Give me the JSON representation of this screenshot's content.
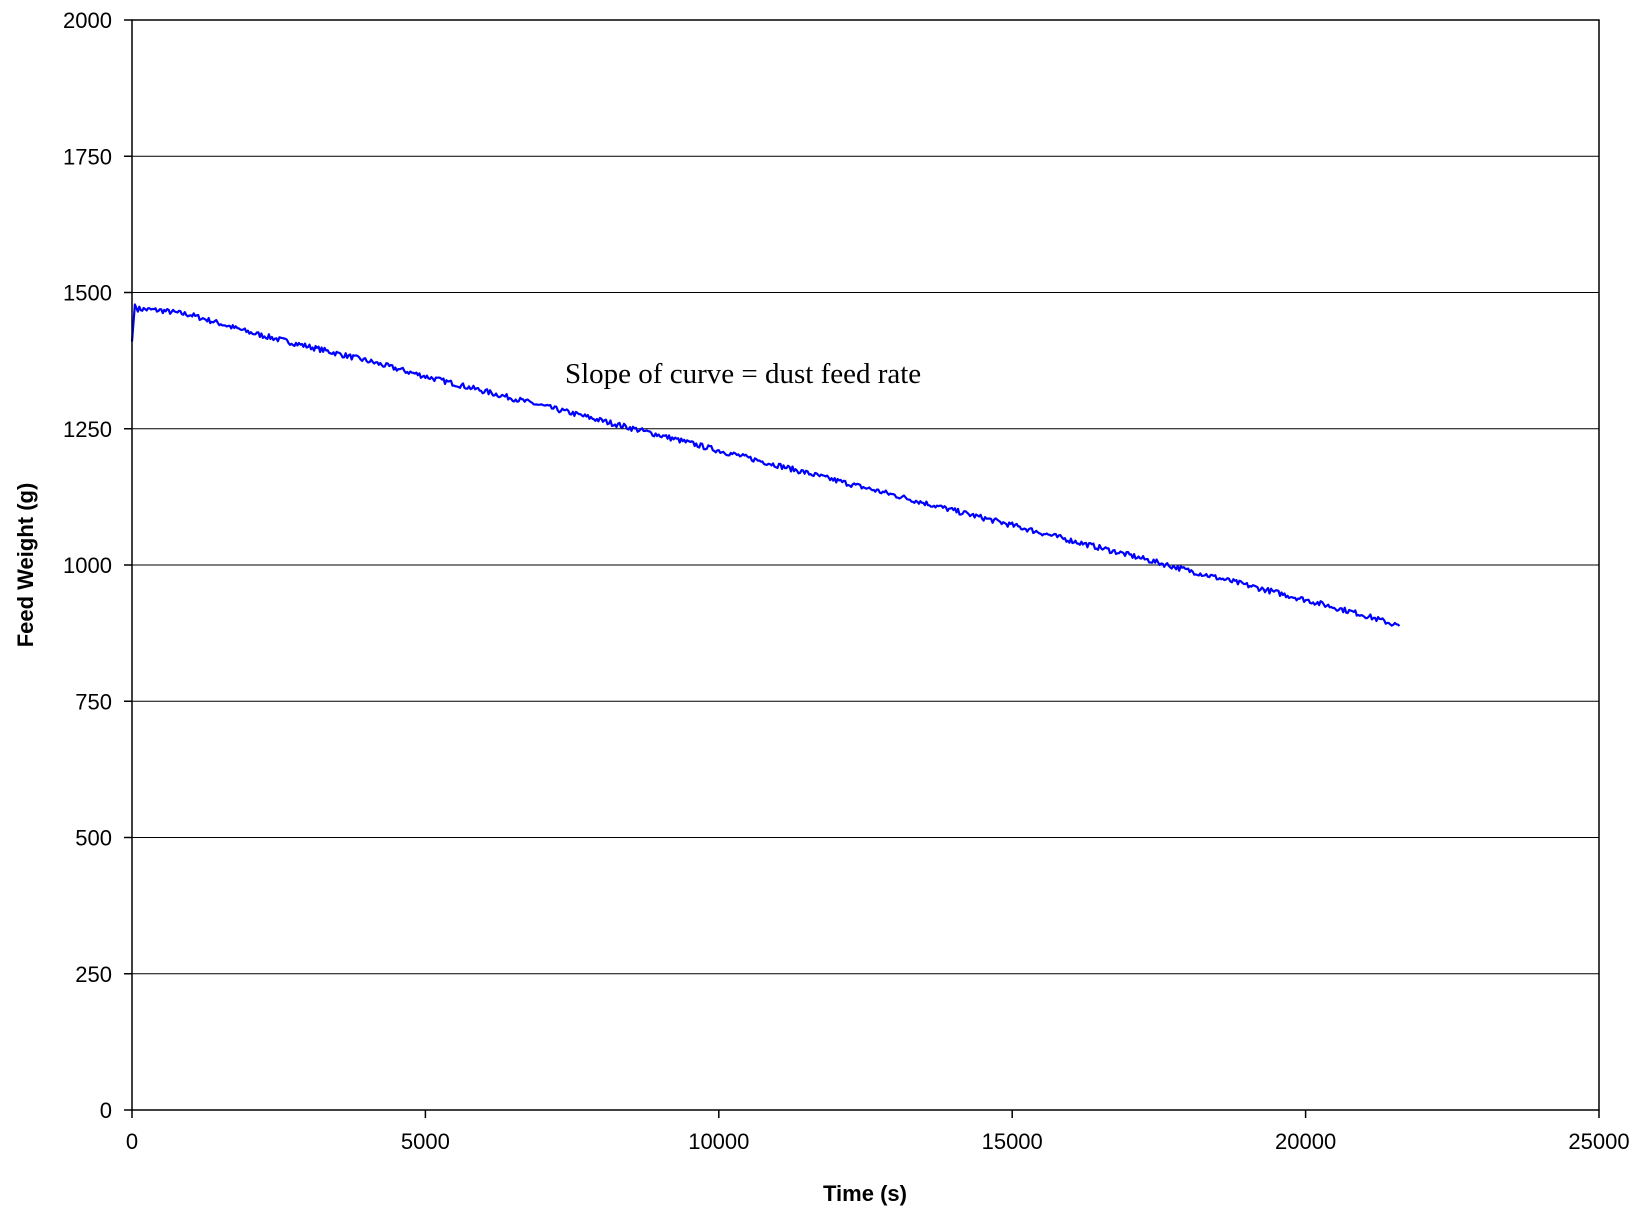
{
  "chart_data": {
    "type": "line",
    "title": "",
    "xlabel": "Time (s)",
    "ylabel": "Feed Weight (g)",
    "xlim": [
      0,
      25000
    ],
    "ylim": [
      0,
      2000
    ],
    "x_ticks": [
      0,
      5000,
      10000,
      15000,
      20000,
      25000
    ],
    "y_ticks": [
      0,
      250,
      500,
      750,
      1000,
      1250,
      1500,
      1750,
      2000
    ],
    "x_tick_labels": [
      "0",
      "5000",
      "10000",
      "15000",
      "20000",
      "25000"
    ],
    "y_tick_labels": [
      "0",
      "250",
      "500",
      "750",
      "1000",
      "1250",
      "1500",
      "1750",
      "2000"
    ],
    "grid": "horizontal",
    "legend": "none",
    "annotation": "Slope of curve = dust feed rate",
    "series": [
      {
        "color": "#0000ff",
        "x": [
          0,
          50,
          100,
          500,
          1000,
          2000,
          3000,
          4000,
          5000,
          6000,
          7000,
          8000,
          9000,
          10000,
          11000,
          12000,
          13000,
          14000,
          15000,
          16000,
          17000,
          18000,
          19000,
          20000,
          21000,
          21600
        ],
        "y": [
          1410,
          1478,
          1470,
          1467,
          1459,
          1427,
          1401,
          1375,
          1346,
          1319,
          1292,
          1265,
          1238,
          1210,
          1183,
          1155,
          1128,
          1100,
          1073,
          1045,
          1018,
          990,
          963,
          936,
          908,
          888
        ]
      }
    ]
  },
  "colors": {
    "series": "#0000ff",
    "axes": "#000000",
    "grid": "#000000",
    "background": "#ffffff"
  }
}
